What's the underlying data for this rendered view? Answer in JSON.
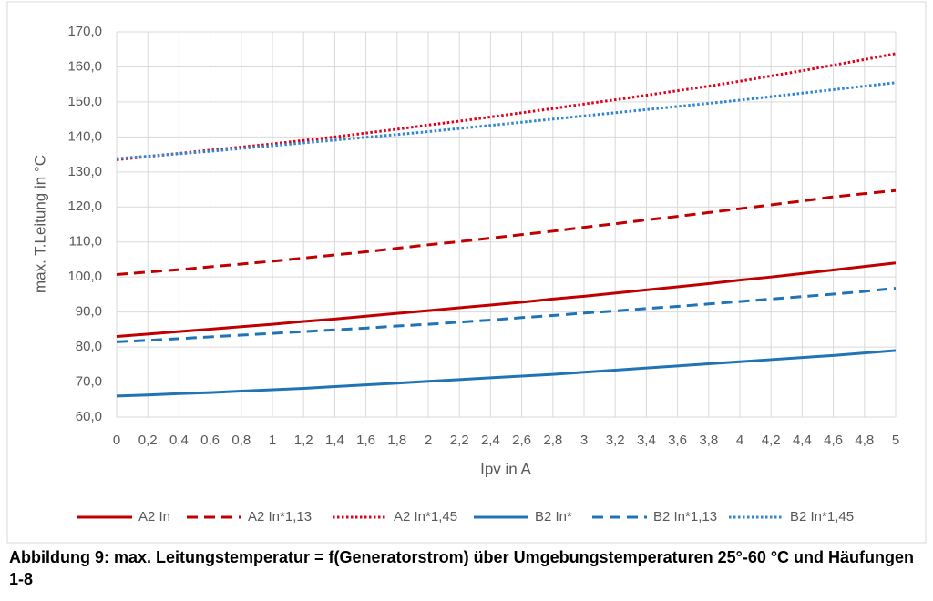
{
  "chart_data": {
    "type": "line",
    "ylabel": "max. T.Leitung in °C",
    "xlabel": "Ipv in A",
    "caption": "Abbildung 9: max. Leitungstemperatur = f(Generatorstrom) über Umgebungstemperaturen 25°-60 °C und Häufungen 1-8",
    "x": [
      0,
      0.2,
      0.4,
      0.6,
      0.8,
      1,
      1.2,
      1.4,
      1.6,
      1.8,
      2,
      2.2,
      2.4,
      2.6,
      2.8,
      3,
      3.2,
      3.4,
      3.6,
      3.8,
      4,
      4.2,
      4.4,
      4.6,
      4.8,
      5
    ],
    "xlim": [
      0,
      5
    ],
    "xticks": [
      0,
      {
        "value": 0.2,
        "label": "0,2"
      },
      {
        "value": 0.4,
        "label": "0,4"
      },
      {
        "value": 0.6,
        "label": "0,6"
      },
      {
        "value": 0.8,
        "label": "0,8"
      },
      1,
      {
        "value": 1.2,
        "label": "1,2"
      },
      {
        "value": 1.4,
        "label": "1,4"
      },
      {
        "value": 1.6,
        "label": "1,6"
      },
      {
        "value": 1.8,
        "label": "1,8"
      },
      2,
      {
        "value": 2.2,
        "label": "2,2"
      },
      {
        "value": 2.4,
        "label": "2,4"
      },
      {
        "value": 2.6,
        "label": "2,6"
      },
      {
        "value": 2.8,
        "label": "2,8"
      },
      3,
      {
        "value": 3.2,
        "label": "3,2"
      },
      {
        "value": 3.4,
        "label": "3,4"
      },
      {
        "value": 3.6,
        "label": "3,6"
      },
      {
        "value": 3.8,
        "label": "3,8"
      },
      4,
      {
        "value": 4.2,
        "label": "4,2"
      },
      {
        "value": 4.4,
        "label": "4,4"
      },
      {
        "value": 4.6,
        "label": "4,6"
      },
      {
        "value": 4.8,
        "label": "4,8"
      },
      5
    ],
    "ylim": [
      60,
      170
    ],
    "yticks": [
      {
        "value": 60,
        "label": "60,0"
      },
      {
        "value": 70,
        "label": "70,0"
      },
      {
        "value": 80,
        "label": "80,0"
      },
      {
        "value": 90,
        "label": "90,0"
      },
      {
        "value": 100,
        "label": "100,0"
      },
      {
        "value": 110,
        "label": "110,0"
      },
      {
        "value": 120,
        "label": "120,0"
      },
      {
        "value": 130,
        "label": "130,0"
      },
      {
        "value": 140,
        "label": "140,0"
      },
      {
        "value": 150,
        "label": "150,0"
      },
      {
        "value": 160,
        "label": "160,0"
      },
      {
        "value": 170,
        "label": "170,0"
      }
    ],
    "grid": true,
    "legend": "bottom",
    "series": [
      {
        "name": "A2 In",
        "color": "#c00000",
        "dash": "solid",
        "values": [
          83.0,
          83.7,
          84.4,
          85.1,
          85.8,
          86.5,
          87.3,
          88.0,
          88.8,
          89.6,
          90.4,
          91.2,
          92.0,
          92.8,
          93.7,
          94.5,
          95.4,
          96.3,
          97.2,
          98.1,
          99.1,
          100.0,
          101.0,
          102.0,
          103.0,
          104.0
        ]
      },
      {
        "name": "A2 In*1,13",
        "color": "#c00000",
        "dash": "dashed",
        "values": [
          100.7,
          101.4,
          102.1,
          102.9,
          103.7,
          104.5,
          105.4,
          106.3,
          107.2,
          108.2,
          109.2,
          110.1,
          111.1,
          112.1,
          113.1,
          114.2,
          115.2,
          116.3,
          117.3,
          118.4,
          119.5,
          120.6,
          121.7,
          122.9,
          123.8,
          124.7
        ]
      },
      {
        "name": "A2 In*1,45",
        "color": "#e0001b",
        "dash": "dotted",
        "values": [
          133.5,
          134.4,
          135.3,
          136.2,
          137.1,
          138.0,
          139.0,
          140.0,
          141.1,
          142.2,
          143.4,
          144.5,
          145.7,
          146.9,
          148.1,
          149.4,
          150.6,
          151.9,
          153.2,
          154.5,
          155.9,
          157.4,
          158.9,
          160.5,
          162.1,
          163.8
        ]
      },
      {
        "name": "B2 In*",
        "color": "#1f74b8",
        "dash": "solid",
        "values": [
          66.0,
          66.3,
          66.7,
          67.0,
          67.4,
          67.8,
          68.2,
          68.7,
          69.2,
          69.7,
          70.2,
          70.7,
          71.2,
          71.7,
          72.2,
          72.8,
          73.4,
          74.0,
          74.6,
          75.2,
          75.8,
          76.4,
          77.0,
          77.6,
          78.3,
          79.0
        ]
      },
      {
        "name": "B2 In*1,13",
        "color": "#1f74b8",
        "dash": "dashed",
        "values": [
          81.5,
          81.9,
          82.4,
          82.9,
          83.4,
          83.9,
          84.4,
          84.9,
          85.4,
          86.0,
          86.5,
          87.1,
          87.7,
          88.4,
          89.0,
          89.7,
          90.3,
          91.0,
          91.6,
          92.3,
          93.0,
          93.7,
          94.4,
          95.1,
          95.9,
          96.8
        ]
      },
      {
        "name": "B2 In*1,45",
        "color": "#2e86d0",
        "dash": "dotted",
        "values": [
          133.8,
          134.5,
          135.2,
          135.9,
          136.7,
          137.5,
          138.3,
          139.1,
          139.9,
          140.7,
          141.5,
          142.4,
          143.3,
          144.2,
          145.1,
          146.0,
          146.9,
          147.8,
          148.7,
          149.6,
          150.5,
          151.5,
          152.5,
          153.5,
          154.5,
          155.5
        ]
      }
    ]
  }
}
